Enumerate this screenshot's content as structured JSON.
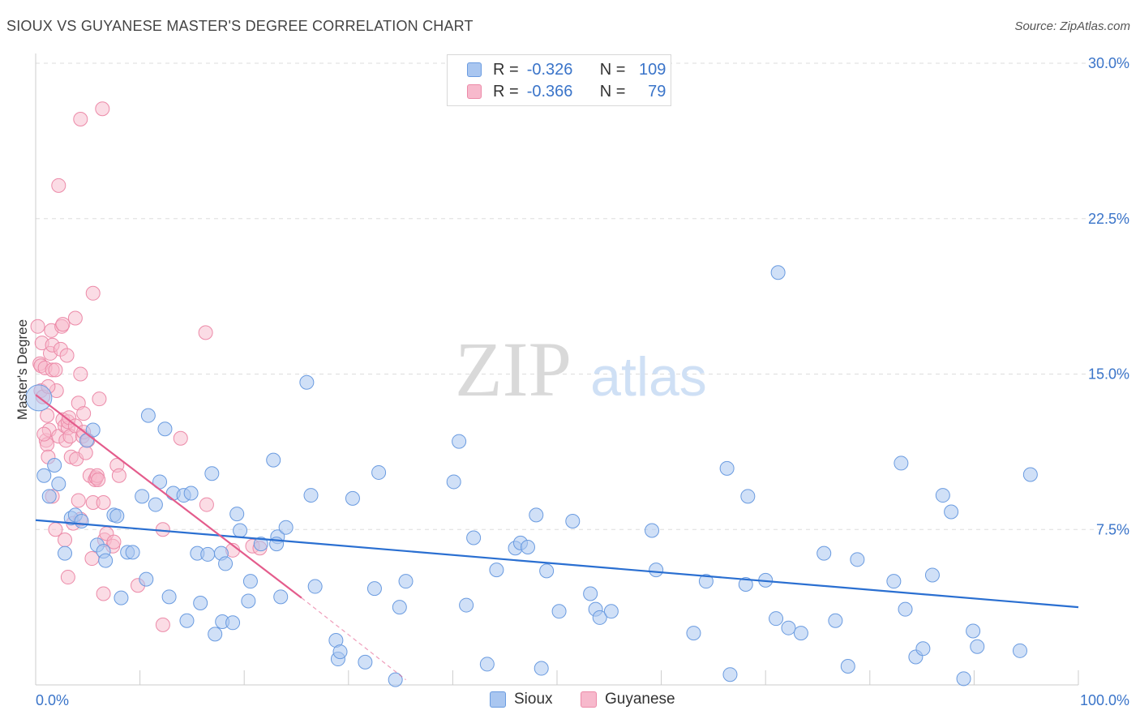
{
  "header": {
    "title": "SIOUX VS GUYANESE MASTER'S DEGREE CORRELATION CHART",
    "source": "Source: ZipAtlas.com"
  },
  "watermark": {
    "zip": "ZIP",
    "atlas": "atlas"
  },
  "legend_top": {
    "rows": [
      {
        "r_label": "R =",
        "r_value": "-0.326",
        "n_label": "N =",
        "n_value": "109"
      },
      {
        "r_label": "R =",
        "r_value": "-0.366",
        "n_label": "N =",
        "n_value": "79"
      }
    ]
  },
  "legend_bottom": {
    "series1": "Sioux",
    "series2": "Guyanese"
  },
  "colors": {
    "sioux_fill": "#a9c6f0",
    "sioux_stroke": "#6a9be0",
    "sioux_line": "#2a6fd1",
    "guyanese_fill": "#f7b9cc",
    "guyanese_stroke": "#ec8aa8",
    "guyanese_line": "#e45c8c",
    "axis_label": "#3a74c9",
    "grid": "#dddddd"
  },
  "chart_data": {
    "type": "scatter",
    "xlabel": "",
    "ylabel": "Master's Degree",
    "xlim": [
      0,
      100
    ],
    "ylim": [
      0,
      30
    ],
    "x_tick_labels": [
      "0.0%",
      "100.0%"
    ],
    "y_ticks": [
      7.5,
      15.0,
      22.5,
      30.0
    ],
    "y_tick_labels": [
      "7.5%",
      "15.0%",
      "22.5%",
      "30.0%"
    ],
    "grid": true,
    "series": [
      {
        "name": "Sioux",
        "stats": {
          "R": -0.326,
          "N": 109
        },
        "trend": {
          "x0": 0,
          "y0": 7.95,
          "x1": 100,
          "y1": 3.75,
          "dashed_to": null
        },
        "points": [
          [
            0.3,
            13.85
          ],
          [
            0.8,
            10.1
          ],
          [
            1.3,
            9.1
          ],
          [
            1.8,
            10.6
          ],
          [
            2.2,
            9.7
          ],
          [
            2.8,
            6.35
          ],
          [
            3.4,
            8.05
          ],
          [
            3.8,
            8.2
          ],
          [
            4.4,
            7.9
          ],
          [
            4.9,
            11.8
          ],
          [
            5.5,
            12.3
          ],
          [
            5.9,
            6.75
          ],
          [
            6.5,
            6.45
          ],
          [
            6.7,
            6.0
          ],
          [
            7.5,
            8.2
          ],
          [
            7.8,
            8.15
          ],
          [
            8.2,
            4.2
          ],
          [
            8.8,
            6.4
          ],
          [
            9.3,
            6.4
          ],
          [
            10.2,
            9.1
          ],
          [
            10.6,
            5.1
          ],
          [
            10.8,
            13.0
          ],
          [
            11.5,
            8.7
          ],
          [
            11.9,
            9.8
          ],
          [
            12.4,
            12.35
          ],
          [
            12.8,
            4.25
          ],
          [
            13.2,
            9.25
          ],
          [
            14.2,
            9.15
          ],
          [
            14.5,
            3.1
          ],
          [
            14.9,
            9.25
          ],
          [
            15.5,
            6.35
          ],
          [
            15.8,
            3.95
          ],
          [
            16.5,
            6.3
          ],
          [
            16.9,
            10.2
          ],
          [
            17.2,
            2.45
          ],
          [
            17.8,
            6.35
          ],
          [
            17.9,
            3.05
          ],
          [
            18.2,
            5.85
          ],
          [
            18.9,
            3.0
          ],
          [
            19.3,
            8.25
          ],
          [
            19.6,
            7.45
          ],
          [
            20.4,
            4.05
          ],
          [
            20.6,
            5.0
          ],
          [
            21.6,
            6.8
          ],
          [
            22.8,
            10.85
          ],
          [
            23.2,
            7.15
          ],
          [
            23.1,
            6.8
          ],
          [
            23.5,
            4.25
          ],
          [
            24.0,
            7.6
          ],
          [
            26.0,
            14.6
          ],
          [
            26.4,
            9.15
          ],
          [
            26.8,
            4.75
          ],
          [
            28.8,
            2.15
          ],
          [
            29.0,
            1.25
          ],
          [
            29.2,
            1.6
          ],
          [
            30.4,
            9.0
          ],
          [
            31.6,
            1.1
          ],
          [
            32.5,
            4.65
          ],
          [
            32.9,
            10.25
          ],
          [
            34.5,
            0.25
          ],
          [
            34.9,
            3.75
          ],
          [
            35.5,
            5.0
          ],
          [
            40.1,
            9.8
          ],
          [
            40.6,
            11.75
          ],
          [
            41.3,
            3.85
          ],
          [
            42.0,
            7.1
          ],
          [
            43.3,
            1.0
          ],
          [
            44.2,
            5.55
          ],
          [
            46.0,
            6.6
          ],
          [
            46.5,
            6.85
          ],
          [
            47.2,
            6.65
          ],
          [
            48.0,
            8.2
          ],
          [
            48.5,
            0.8
          ],
          [
            49.0,
            5.5
          ],
          [
            50.2,
            3.55
          ],
          [
            51.5,
            7.9
          ],
          [
            53.2,
            4.4
          ],
          [
            53.7,
            3.65
          ],
          [
            54.1,
            3.25
          ],
          [
            55.2,
            3.55
          ],
          [
            59.1,
            7.45
          ],
          [
            59.5,
            5.55
          ],
          [
            63.1,
            2.5
          ],
          [
            64.3,
            5.0
          ],
          [
            66.3,
            10.45
          ],
          [
            66.6,
            0.5
          ],
          [
            68.1,
            4.85
          ],
          [
            68.3,
            9.1
          ],
          [
            70.0,
            5.05
          ],
          [
            71.2,
            19.9
          ],
          [
            71.0,
            3.2
          ],
          [
            72.2,
            2.75
          ],
          [
            73.4,
            2.5
          ],
          [
            75.6,
            6.35
          ],
          [
            76.7,
            3.1
          ],
          [
            77.9,
            0.9
          ],
          [
            78.8,
            6.05
          ],
          [
            82.3,
            5.0
          ],
          [
            83.0,
            10.7
          ],
          [
            83.4,
            3.65
          ],
          [
            84.4,
            1.35
          ],
          [
            85.1,
            1.75
          ],
          [
            86.0,
            5.3
          ],
          [
            87.0,
            9.15
          ],
          [
            87.8,
            8.35
          ],
          [
            89.9,
            2.6
          ],
          [
            90.3,
            1.85
          ],
          [
            94.4,
            1.65
          ],
          [
            95.4,
            10.15
          ],
          [
            89.0,
            0.3
          ]
        ]
      },
      {
        "name": "Guyanese",
        "stats": {
          "R": -0.366,
          "N": 79
        },
        "trend": {
          "x0": 0,
          "y0": 14.0,
          "x1": 25.5,
          "y1": 4.2,
          "dashed_to": {
            "x": 35.5,
            "y": 0.25
          }
        },
        "points": [
          [
            0.2,
            17.3
          ],
          [
            0.4,
            15.5
          ],
          [
            0.5,
            14.2
          ],
          [
            0.5,
            15.4
          ],
          [
            0.6,
            16.5
          ],
          [
            0.7,
            13.9
          ],
          [
            0.9,
            15.3
          ],
          [
            1.0,
            11.8
          ],
          [
            1.1,
            11.6
          ],
          [
            1.1,
            13.0
          ],
          [
            1.2,
            11.0
          ],
          [
            1.3,
            12.3
          ],
          [
            1.4,
            16.0
          ],
          [
            1.5,
            17.1
          ],
          [
            1.6,
            15.2
          ],
          [
            1.6,
            16.4
          ],
          [
            1.6,
            9.1
          ],
          [
            1.9,
            7.5
          ],
          [
            1.9,
            15.2
          ],
          [
            2.0,
            14.2
          ],
          [
            2.2,
            24.1
          ],
          [
            2.2,
            12.0
          ],
          [
            2.4,
            16.2
          ],
          [
            2.5,
            17.3
          ],
          [
            2.6,
            17.4
          ],
          [
            2.6,
            12.8
          ],
          [
            2.8,
            12.5
          ],
          [
            2.9,
            11.8
          ],
          [
            3.0,
            15.9
          ],
          [
            3.1,
            12.4
          ],
          [
            3.1,
            12.7
          ],
          [
            3.1,
            5.2
          ],
          [
            3.2,
            12.9
          ],
          [
            3.3,
            12.0
          ],
          [
            3.4,
            11.0
          ],
          [
            3.6,
            7.8
          ],
          [
            3.8,
            17.7
          ],
          [
            3.8,
            12.5
          ],
          [
            3.9,
            10.9
          ],
          [
            4.1,
            8.9
          ],
          [
            4.1,
            13.6
          ],
          [
            4.3,
            8.0
          ],
          [
            4.3,
            15.0
          ],
          [
            4.3,
            27.3
          ],
          [
            4.5,
            12.0
          ],
          [
            4.6,
            13.1
          ],
          [
            4.6,
            12.2
          ],
          [
            4.8,
            11.2
          ],
          [
            5.0,
            11.8
          ],
          [
            5.2,
            10.1
          ],
          [
            5.4,
            6.1
          ],
          [
            5.5,
            8.8
          ],
          [
            5.5,
            18.9
          ],
          [
            5.7,
            9.9
          ],
          [
            5.8,
            10.0
          ],
          [
            5.9,
            10.1
          ],
          [
            6.0,
            9.9
          ],
          [
            6.1,
            13.8
          ],
          [
            6.5,
            8.8
          ],
          [
            6.5,
            4.4
          ],
          [
            6.6,
            7.0
          ],
          [
            6.8,
            7.3
          ],
          [
            7.4,
            6.7
          ],
          [
            7.5,
            6.9
          ],
          [
            7.8,
            10.6
          ],
          [
            8.0,
            10.1
          ],
          [
            6.4,
            27.8
          ],
          [
            9.8,
            4.8
          ],
          [
            12.2,
            2.9
          ],
          [
            12.2,
            7.5
          ],
          [
            13.9,
            11.9
          ],
          [
            16.3,
            17.0
          ],
          [
            16.4,
            8.7
          ],
          [
            18.9,
            6.5
          ],
          [
            20.8,
            6.7
          ],
          [
            21.5,
            6.6
          ],
          [
            1.2,
            14.4
          ],
          [
            2.8,
            7.0
          ],
          [
            0.8,
            12.1
          ]
        ]
      }
    ]
  }
}
